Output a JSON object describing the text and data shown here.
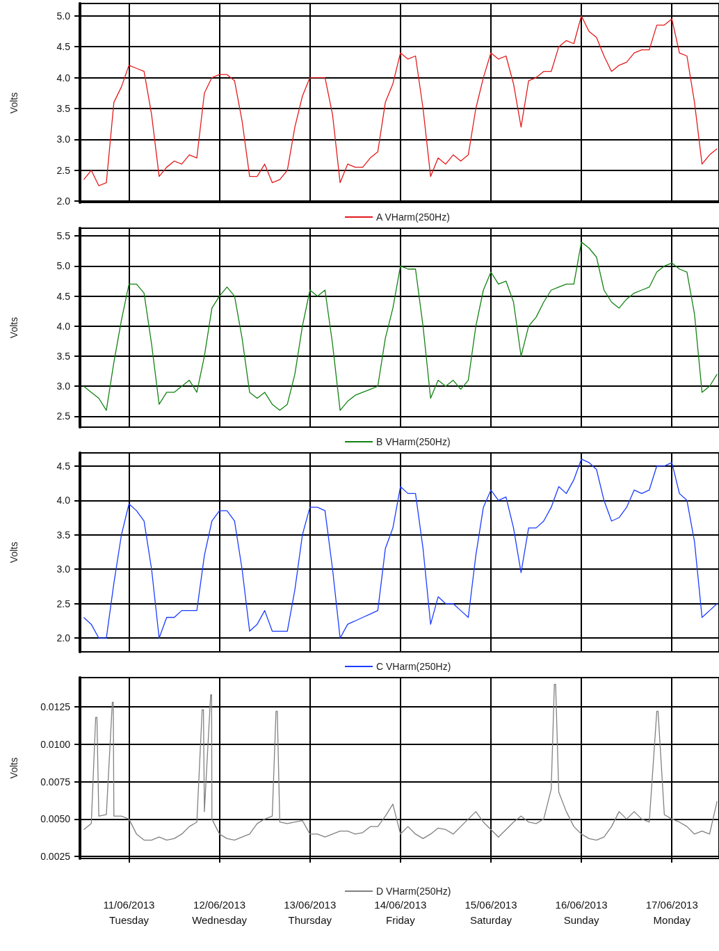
{
  "chart_data": [
    {
      "type": "line",
      "ylabel": "Volts",
      "legend": "bottom",
      "grid": true,
      "tick_labels": "y",
      "xlim": [
        "2013-06-10T11:00",
        "2013-06-17T12:30"
      ],
      "xticks": [
        {
          "value": "2013-06-11",
          "label": null
        },
        {
          "value": "2013-06-12",
          "label": null
        },
        {
          "value": "2013-06-13",
          "label": null
        },
        {
          "value": "2013-06-14",
          "label": null
        },
        {
          "value": "2013-06-15",
          "label": null
        },
        {
          "value": "2013-06-16",
          "label": null
        },
        {
          "value": "2013-06-17",
          "label": null
        }
      ],
      "ylim": [
        1.98,
        5.2
      ],
      "yticks": [
        {
          "value": 2,
          "label": "2.0"
        },
        2.5,
        {
          "value": 3,
          "label": "3.0"
        },
        3.5,
        {
          "value": 4,
          "label": "4.0"
        },
        4.5,
        {
          "value": 5,
          "label": "5.0"
        }
      ],
      "x": [
        "2013-06-10T12:00",
        "2013-06-10T14:00",
        "2013-06-10T16:00",
        "2013-06-10T18:00",
        "2013-06-10T20:00",
        "2013-06-10T22:00",
        "2013-06-11T00:00",
        "2013-06-11T02:00",
        "2013-06-11T04:00",
        "2013-06-11T06:00",
        "2013-06-11T08:00",
        "2013-06-11T10:00",
        "2013-06-11T12:00",
        "2013-06-11T14:00",
        "2013-06-11T16:00",
        "2013-06-11T18:00",
        "2013-06-11T20:00",
        "2013-06-11T22:00",
        "2013-06-12T00:00",
        "2013-06-12T02:00",
        "2013-06-12T04:00",
        "2013-06-12T06:00",
        "2013-06-12T08:00",
        "2013-06-12T10:00",
        "2013-06-12T12:00",
        "2013-06-12T14:00",
        "2013-06-12T16:00",
        "2013-06-12T18:00",
        "2013-06-12T20:00",
        "2013-06-12T22:00",
        "2013-06-13T00:00",
        "2013-06-13T02:00",
        "2013-06-13T04:00",
        "2013-06-13T06:00",
        "2013-06-13T08:00",
        "2013-06-13T10:00",
        "2013-06-13T12:00",
        "2013-06-13T14:00",
        "2013-06-13T16:00",
        "2013-06-13T18:00",
        "2013-06-13T20:00",
        "2013-06-13T22:00",
        "2013-06-14T00:00",
        "2013-06-14T02:00",
        "2013-06-14T04:00",
        "2013-06-14T06:00",
        "2013-06-14T08:00",
        "2013-06-14T10:00",
        "2013-06-14T12:00",
        "2013-06-14T14:00",
        "2013-06-14T16:00",
        "2013-06-14T18:00",
        "2013-06-14T20:00",
        "2013-06-14T22:00",
        "2013-06-15T00:00",
        "2013-06-15T02:00",
        "2013-06-15T04:00",
        "2013-06-15T06:00",
        "2013-06-15T08:00",
        "2013-06-15T10:00",
        "2013-06-15T12:00",
        "2013-06-15T14:00",
        "2013-06-15T16:00",
        "2013-06-15T18:00",
        "2013-06-15T20:00",
        "2013-06-15T22:00",
        "2013-06-16T00:00",
        "2013-06-16T02:00",
        "2013-06-16T04:00",
        "2013-06-16T06:00",
        "2013-06-16T08:00",
        "2013-06-16T10:00",
        "2013-06-16T12:00",
        "2013-06-16T14:00",
        "2013-06-16T16:00",
        "2013-06-16T18:00",
        "2013-06-16T20:00",
        "2013-06-16T22:00",
        "2013-06-17T00:00",
        "2013-06-17T02:00",
        "2013-06-17T04:00",
        "2013-06-17T06:00",
        "2013-06-17T08:00",
        "2013-06-17T10:00",
        "2013-06-17T12:00"
      ],
      "series": [
        {
          "name": "A VHarm(250Hz)",
          "color": "#e31a1c",
          "values": [
            2.35,
            2.5,
            2.25,
            2.3,
            3.6,
            3.85,
            4.2,
            4.15,
            4.1,
            3.4,
            2.4,
            2.55,
            2.65,
            2.6,
            2.75,
            2.7,
            3.75,
            4.0,
            4.05,
            4.05,
            3.95,
            3.3,
            2.4,
            2.4,
            2.6,
            2.3,
            2.35,
            2.5,
            3.2,
            3.7,
            4.0,
            4.0,
            4.0,
            3.4,
            2.3,
            2.6,
            2.55,
            2.55,
            2.7,
            2.8,
            3.6,
            3.9,
            4.4,
            4.3,
            4.35,
            3.5,
            2.4,
            2.7,
            2.6,
            2.75,
            2.65,
            2.75,
            3.5,
            4.0,
            4.4,
            4.3,
            4.35,
            3.9,
            3.2,
            3.95,
            4.0,
            4.1,
            4.1,
            4.5,
            4.6,
            4.55,
            5.0,
            4.75,
            4.65,
            4.35,
            4.1,
            4.2,
            4.25,
            4.4,
            4.45,
            4.45,
            4.85,
            4.85,
            4.95,
            4.4,
            4.35,
            3.6,
            2.6,
            2.75,
            2.85
          ]
        }
      ]
    },
    {
      "type": "line",
      "ylabel": "Volts",
      "legend": "bottom",
      "grid": true,
      "tick_labels": "y",
      "xlim": [
        "2013-06-10T11:00",
        "2013-06-17T12:30"
      ],
      "xticks": [
        {
          "value": "2013-06-11",
          "label": null
        },
        {
          "value": "2013-06-12",
          "label": null
        },
        {
          "value": "2013-06-13",
          "label": null
        },
        {
          "value": "2013-06-14",
          "label": null
        },
        {
          "value": "2013-06-15",
          "label": null
        },
        {
          "value": "2013-06-16",
          "label": null
        },
        {
          "value": "2013-06-17",
          "label": null
        }
      ],
      "ylim": [
        2.32,
        5.63
      ],
      "yticks": [
        2.5,
        {
          "value": 3,
          "label": "3.0"
        },
        3.5,
        {
          "value": 4,
          "label": "4.0"
        },
        4.5,
        {
          "value": 5,
          "label": "5.0"
        },
        5.5
      ],
      "x": [
        "2013-06-10T12:00",
        "2013-06-10T14:00",
        "2013-06-10T16:00",
        "2013-06-10T18:00",
        "2013-06-10T20:00",
        "2013-06-10T22:00",
        "2013-06-11T00:00",
        "2013-06-11T02:00",
        "2013-06-11T04:00",
        "2013-06-11T06:00",
        "2013-06-11T08:00",
        "2013-06-11T10:00",
        "2013-06-11T12:00",
        "2013-06-11T14:00",
        "2013-06-11T16:00",
        "2013-06-11T18:00",
        "2013-06-11T20:00",
        "2013-06-11T22:00",
        "2013-06-12T00:00",
        "2013-06-12T02:00",
        "2013-06-12T04:00",
        "2013-06-12T06:00",
        "2013-06-12T08:00",
        "2013-06-12T10:00",
        "2013-06-12T12:00",
        "2013-06-12T14:00",
        "2013-06-12T16:00",
        "2013-06-12T18:00",
        "2013-06-12T20:00",
        "2013-06-12T22:00",
        "2013-06-13T00:00",
        "2013-06-13T02:00",
        "2013-06-13T04:00",
        "2013-06-13T06:00",
        "2013-06-13T08:00",
        "2013-06-13T10:00",
        "2013-06-13T12:00",
        "2013-06-13T14:00",
        "2013-06-13T16:00",
        "2013-06-13T18:00",
        "2013-06-13T20:00",
        "2013-06-13T22:00",
        "2013-06-14T00:00",
        "2013-06-14T02:00",
        "2013-06-14T04:00",
        "2013-06-14T06:00",
        "2013-06-14T08:00",
        "2013-06-14T10:00",
        "2013-06-14T12:00",
        "2013-06-14T14:00",
        "2013-06-14T16:00",
        "2013-06-14T18:00",
        "2013-06-14T20:00",
        "2013-06-14T22:00",
        "2013-06-15T00:00",
        "2013-06-15T02:00",
        "2013-06-15T04:00",
        "2013-06-15T06:00",
        "2013-06-15T08:00",
        "2013-06-15T10:00",
        "2013-06-15T12:00",
        "2013-06-15T14:00",
        "2013-06-15T16:00",
        "2013-06-15T18:00",
        "2013-06-15T20:00",
        "2013-06-15T22:00",
        "2013-06-16T00:00",
        "2013-06-16T02:00",
        "2013-06-16T04:00",
        "2013-06-16T06:00",
        "2013-06-16T08:00",
        "2013-06-16T10:00",
        "2013-06-16T12:00",
        "2013-06-16T14:00",
        "2013-06-16T16:00",
        "2013-06-16T18:00",
        "2013-06-16T20:00",
        "2013-06-16T22:00",
        "2013-06-17T00:00",
        "2013-06-17T02:00",
        "2013-06-17T04:00",
        "2013-06-17T06:00",
        "2013-06-17T08:00",
        "2013-06-17T10:00",
        "2013-06-17T12:00"
      ],
      "series": [
        {
          "name": "B VHarm(250Hz)",
          "color": "#128212",
          "values": [
            3.0,
            2.9,
            2.8,
            2.6,
            3.4,
            4.1,
            4.7,
            4.7,
            4.55,
            3.7,
            2.7,
            2.9,
            2.9,
            3.0,
            3.1,
            2.9,
            3.5,
            4.3,
            4.5,
            4.65,
            4.5,
            3.8,
            2.9,
            2.8,
            2.9,
            2.7,
            2.6,
            2.7,
            3.2,
            4.0,
            4.6,
            4.5,
            4.6,
            3.7,
            2.6,
            2.75,
            2.85,
            2.9,
            2.95,
            3.0,
            3.8,
            4.3,
            5.0,
            4.95,
            4.95,
            4.0,
            2.8,
            3.1,
            3.0,
            3.1,
            2.95,
            3.1,
            4.0,
            4.6,
            4.9,
            4.7,
            4.75,
            4.4,
            3.5,
            4.0,
            4.15,
            4.4,
            4.6,
            4.65,
            4.7,
            4.7,
            5.4,
            5.3,
            5.15,
            4.6,
            4.4,
            4.3,
            4.45,
            4.55,
            4.6,
            4.65,
            4.9,
            5.0,
            5.05,
            4.95,
            4.9,
            4.2,
            2.9,
            3.0,
            3.2
          ]
        }
      ]
    },
    {
      "type": "line",
      "ylabel": "Volts",
      "legend": "bottom",
      "grid": true,
      "tick_labels": "y",
      "xlim": [
        "2013-06-10T11:00",
        "2013-06-17T12:30"
      ],
      "xticks": [
        {
          "value": "2013-06-11",
          "label": null
        },
        {
          "value": "2013-06-12",
          "label": null
        },
        {
          "value": "2013-06-13",
          "label": null
        },
        {
          "value": "2013-06-14",
          "label": null
        },
        {
          "value": "2013-06-15",
          "label": null
        },
        {
          "value": "2013-06-16",
          "label": null
        },
        {
          "value": "2013-06-17",
          "label": null
        }
      ],
      "ylim": [
        1.8,
        4.69
      ],
      "yticks": [
        {
          "value": 2,
          "label": "2.0"
        },
        2.5,
        {
          "value": 3,
          "label": "3.0"
        },
        3.5,
        {
          "value": 4,
          "label": "4.0"
        },
        4.5
      ],
      "x": [
        "2013-06-10T12:00",
        "2013-06-10T14:00",
        "2013-06-10T16:00",
        "2013-06-10T18:00",
        "2013-06-10T20:00",
        "2013-06-10T22:00",
        "2013-06-11T00:00",
        "2013-06-11T02:00",
        "2013-06-11T04:00",
        "2013-06-11T06:00",
        "2013-06-11T08:00",
        "2013-06-11T10:00",
        "2013-06-11T12:00",
        "2013-06-11T14:00",
        "2013-06-11T16:00",
        "2013-06-11T18:00",
        "2013-06-11T20:00",
        "2013-06-11T22:00",
        "2013-06-12T00:00",
        "2013-06-12T02:00",
        "2013-06-12T04:00",
        "2013-06-12T06:00",
        "2013-06-12T08:00",
        "2013-06-12T10:00",
        "2013-06-12T12:00",
        "2013-06-12T14:00",
        "2013-06-12T16:00",
        "2013-06-12T18:00",
        "2013-06-12T20:00",
        "2013-06-12T22:00",
        "2013-06-13T00:00",
        "2013-06-13T02:00",
        "2013-06-13T04:00",
        "2013-06-13T06:00",
        "2013-06-13T08:00",
        "2013-06-13T10:00",
        "2013-06-13T12:00",
        "2013-06-13T14:00",
        "2013-06-13T16:00",
        "2013-06-13T18:00",
        "2013-06-13T20:00",
        "2013-06-13T22:00",
        "2013-06-14T00:00",
        "2013-06-14T02:00",
        "2013-06-14T04:00",
        "2013-06-14T06:00",
        "2013-06-14T08:00",
        "2013-06-14T10:00",
        "2013-06-14T12:00",
        "2013-06-14T14:00",
        "2013-06-14T16:00",
        "2013-06-14T18:00",
        "2013-06-14T20:00",
        "2013-06-14T22:00",
        "2013-06-15T00:00",
        "2013-06-15T02:00",
        "2013-06-15T04:00",
        "2013-06-15T06:00",
        "2013-06-15T08:00",
        "2013-06-15T10:00",
        "2013-06-15T12:00",
        "2013-06-15T14:00",
        "2013-06-15T16:00",
        "2013-06-15T18:00",
        "2013-06-15T20:00",
        "2013-06-15T22:00",
        "2013-06-16T00:00",
        "2013-06-16T02:00",
        "2013-06-16T04:00",
        "2013-06-16T06:00",
        "2013-06-16T08:00",
        "2013-06-16T10:00",
        "2013-06-16T12:00",
        "2013-06-16T14:00",
        "2013-06-16T16:00",
        "2013-06-16T18:00",
        "2013-06-16T20:00",
        "2013-06-16T22:00",
        "2013-06-17T00:00",
        "2013-06-17T02:00",
        "2013-06-17T04:00",
        "2013-06-17T06:00",
        "2013-06-17T08:00",
        "2013-06-17T10:00",
        "2013-06-17T12:00"
      ],
      "series": [
        {
          "name": "C VHarm(250Hz)",
          "color": "#1a3cff",
          "values": [
            2.3,
            2.2,
            2.0,
            2.0,
            2.8,
            3.5,
            3.95,
            3.85,
            3.7,
            3.0,
            2.0,
            2.3,
            2.3,
            2.4,
            2.4,
            2.4,
            3.2,
            3.7,
            3.85,
            3.85,
            3.7,
            3.0,
            2.1,
            2.2,
            2.4,
            2.1,
            2.1,
            2.1,
            2.7,
            3.5,
            3.9,
            3.9,
            3.85,
            3.0,
            2.0,
            2.2,
            2.25,
            2.3,
            2.35,
            2.4,
            3.3,
            3.6,
            4.2,
            4.1,
            4.1,
            3.3,
            2.2,
            2.6,
            2.5,
            2.5,
            2.4,
            2.3,
            3.2,
            3.9,
            4.15,
            4.0,
            4.05,
            3.6,
            2.95,
            3.6,
            3.6,
            3.7,
            3.9,
            4.2,
            4.1,
            4.3,
            4.6,
            4.55,
            4.45,
            4.0,
            3.7,
            3.75,
            3.9,
            4.15,
            4.1,
            4.15,
            4.5,
            4.5,
            4.55,
            4.1,
            4.0,
            3.4,
            2.3,
            2.4,
            2.5
          ]
        }
      ]
    },
    {
      "type": "line",
      "ylabel": "Volts",
      "legend": "bottom",
      "grid": true,
      "xlim": [
        "2013-06-10T11:00",
        "2013-06-17T12:30"
      ],
      "xticks": [
        {
          "value": "2013-06-11",
          "label": "11/06/2013\nTuesday"
        },
        {
          "value": "2013-06-12",
          "label": "12/06/2013\nWednesday"
        },
        {
          "value": "2013-06-13",
          "label": "13/06/2013\nThursday"
        },
        {
          "value": "2013-06-14",
          "label": "14/06/2013\nFriday"
        },
        {
          "value": "2013-06-15",
          "label": "15/06/2013\nSaturday"
        },
        {
          "value": "2013-06-16",
          "label": "16/06/2013\nSunday"
        },
        {
          "value": "2013-06-17",
          "label": "17/06/2013\nMonday"
        }
      ],
      "ylim": [
        0.00237,
        0.01445
      ],
      "yticks": [
        {
          "value": 0.0025,
          "label": "0.0025"
        },
        {
          "value": 0.005,
          "label": "0.0050"
        },
        {
          "value": 0.0075,
          "label": "0.0075"
        },
        {
          "value": 0.01,
          "label": "0.0100"
        },
        0.0125
      ],
      "x": [
        "2013-06-10T12:00",
        "2013-06-10T14:00",
        "2013-06-10T15:10",
        "2013-06-10T15:30",
        "2013-06-10T16:00",
        "2013-06-10T18:00",
        "2013-06-10T19:35",
        "2013-06-10T19:50",
        "2013-06-10T20:00",
        "2013-06-10T22:00",
        "2013-06-11T00:00",
        "2013-06-11T02:00",
        "2013-06-11T04:00",
        "2013-06-11T06:00",
        "2013-06-11T08:00",
        "2013-06-11T10:00",
        "2013-06-11T12:00",
        "2013-06-11T14:00",
        "2013-06-11T16:00",
        "2013-06-11T18:00",
        "2013-06-11T19:25",
        "2013-06-11T19:45",
        "2013-06-11T20:00",
        "2013-06-11T21:40",
        "2013-06-11T21:55",
        "2013-06-11T22:00",
        "2013-06-12T00:00",
        "2013-06-12T02:00",
        "2013-06-12T04:00",
        "2013-06-12T06:00",
        "2013-06-12T08:00",
        "2013-06-12T10:00",
        "2013-06-12T12:00",
        "2013-06-12T14:00",
        "2013-06-12T15:00",
        "2013-06-12T15:20",
        "2013-06-12T16:00",
        "2013-06-12T18:00",
        "2013-06-12T20:00",
        "2013-06-12T22:00",
        "2013-06-13T00:00",
        "2013-06-13T02:00",
        "2013-06-13T04:00",
        "2013-06-13T06:00",
        "2013-06-13T08:00",
        "2013-06-13T10:00",
        "2013-06-13T12:00",
        "2013-06-13T14:00",
        "2013-06-13T16:00",
        "2013-06-13T18:00",
        "2013-06-13T20:00",
        "2013-06-13T22:00",
        "2013-06-14T00:00",
        "2013-06-14T02:00",
        "2013-06-14T04:00",
        "2013-06-14T06:00",
        "2013-06-14T08:00",
        "2013-06-14T10:00",
        "2013-06-14T12:00",
        "2013-06-14T14:00",
        "2013-06-14T16:00",
        "2013-06-14T18:00",
        "2013-06-14T20:00",
        "2013-06-14T22:00",
        "2013-06-15T00:00",
        "2013-06-15T02:00",
        "2013-06-15T04:00",
        "2013-06-15T06:00",
        "2013-06-15T08:00",
        "2013-06-15T10:00",
        "2013-06-15T12:00",
        "2013-06-15T14:00",
        "2013-06-15T16:00",
        "2013-06-15T16:50",
        "2013-06-15T17:10",
        "2013-06-15T18:00",
        "2013-06-15T20:00",
        "2013-06-15T22:00",
        "2013-06-16T00:00",
        "2013-06-16T02:00",
        "2013-06-16T04:00",
        "2013-06-16T06:00",
        "2013-06-16T08:00",
        "2013-06-16T10:00",
        "2013-06-16T12:00",
        "2013-06-16T14:00",
        "2013-06-16T16:00",
        "2013-06-16T18:00",
        "2013-06-16T20:00",
        "2013-06-16T20:20",
        "2013-06-16T22:00",
        "2013-06-17T00:00",
        "2013-06-17T02:00",
        "2013-06-17T04:00",
        "2013-06-17T06:00",
        "2013-06-17T08:00",
        "2013-06-17T10:00",
        "2013-06-17T12:00"
      ],
      "series": [
        {
          "name": "D VHarm(250Hz)",
          "color": "#808080",
          "values": [
            0.0043,
            0.0047,
            0.0118,
            0.0118,
            0.0052,
            0.0053,
            0.0128,
            0.0128,
            0.0052,
            0.0052,
            0.005,
            0.004,
            0.0036,
            0.0036,
            0.0038,
            0.0036,
            0.0037,
            0.004,
            0.0045,
            0.0048,
            0.0123,
            0.0123,
            0.0055,
            0.0133,
            0.0133,
            0.005,
            0.004,
            0.0037,
            0.0036,
            0.0038,
            0.004,
            0.0047,
            0.005,
            0.0052,
            0.0122,
            0.0122,
            0.0048,
            0.0047,
            0.0048,
            0.0049,
            0.004,
            0.004,
            0.0038,
            0.004,
            0.0042,
            0.0042,
            0.004,
            0.0041,
            0.0045,
            0.0045,
            0.0052,
            0.006,
            0.004,
            0.0045,
            0.004,
            0.0037,
            0.004,
            0.0044,
            0.0043,
            0.004,
            0.0045,
            0.005,
            0.0055,
            0.0048,
            0.0043,
            0.0038,
            0.0043,
            0.0048,
            0.0052,
            0.0048,
            0.0047,
            0.005,
            0.007,
            0.014,
            0.014,
            0.0068,
            0.0055,
            0.0045,
            0.004,
            0.0037,
            0.0036,
            0.0038,
            0.0045,
            0.0055,
            0.005,
            0.0055,
            0.005,
            0.0048,
            0.0122,
            0.0122,
            0.0053,
            0.005,
            0.0048,
            0.0045,
            0.004,
            0.0042,
            0.004,
            0.0062
          ]
        }
      ]
    }
  ]
}
